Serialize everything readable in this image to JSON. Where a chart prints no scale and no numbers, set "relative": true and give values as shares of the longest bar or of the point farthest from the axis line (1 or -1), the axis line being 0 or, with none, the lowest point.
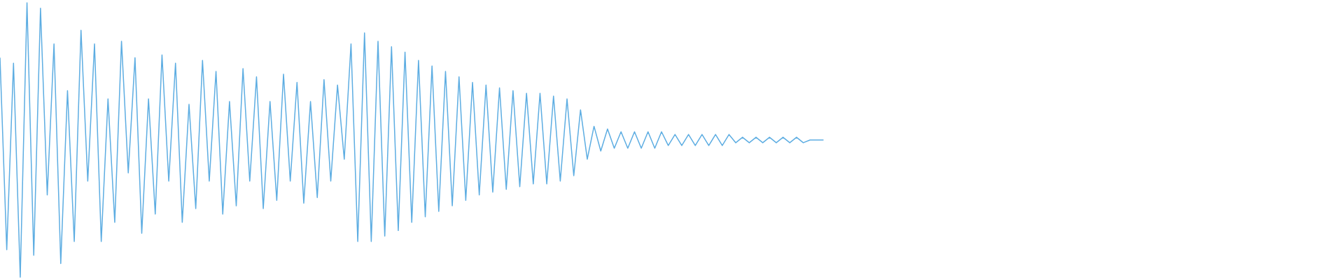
{
  "chart_data": {
    "type": "line",
    "relative": true,
    "categories": [
      null,
      null,
      null,
      null,
      null,
      null,
      null,
      null,
      null,
      null,
      null,
      null,
      null,
      null,
      null,
      null,
      null,
      null,
      null,
      null,
      null,
      null,
      null,
      null,
      null,
      null,
      null,
      null,
      null,
      null,
      null,
      null,
      null,
      null,
      null,
      null,
      null,
      null,
      null,
      null,
      null,
      null,
      null,
      null,
      null,
      null,
      null,
      null,
      null,
      null,
      null,
      null,
      null,
      null,
      null,
      null,
      null,
      null,
      null,
      null,
      null,
      null,
      null,
      null,
      null,
      null,
      null,
      null,
      null,
      null,
      null,
      null,
      null,
      null,
      null,
      null,
      null,
      null,
      null,
      null,
      null,
      null,
      null,
      null,
      null,
      null,
      null,
      null,
      null,
      null,
      null,
      null,
      null,
      null,
      null,
      null,
      null,
      null,
      null,
      null,
      null,
      null,
      null,
      null,
      null,
      null,
      null,
      null,
      null,
      null,
      null,
      null,
      null,
      null,
      null,
      null,
      null,
      null,
      null,
      null,
      null,
      null,
      null,
      null,
      null,
      null,
      null,
      null,
      null,
      null,
      null,
      null,
      null,
      null,
      null,
      null,
      null,
      null,
      null,
      null,
      null,
      null,
      null,
      null,
      null,
      null,
      null,
      null,
      null,
      null,
      null,
      null,
      null,
      null,
      null,
      null,
      null,
      null,
      null,
      null,
      null,
      null,
      null,
      null,
      null,
      null,
      null,
      null,
      null,
      null,
      null,
      null,
      null,
      null,
      null,
      null,
      null,
      null,
      null,
      null,
      null,
      null,
      null,
      null,
      null,
      null,
      null,
      null,
      null,
      null,
      null,
      null,
      null,
      null,
      null,
      null,
      null,
      null,
      null,
      null
    ],
    "series": [
      {
        "color": "#5dade2",
        "values": [
          0.8,
          0.1,
          0.78,
          0,
          1,
          0.08,
          0.98,
          0.3,
          0.85,
          0.05,
          0.68,
          0.13,
          0.9,
          0.35,
          0.85,
          0.13,
          0.65,
          0.2,
          0.86,
          0.38,
          0.8,
          0.16,
          0.65,
          0.23,
          0.81,
          0.35,
          0.78,
          0.2,
          0.63,
          0.25,
          0.79,
          0.35,
          0.75,
          0.23,
          0.64,
          0.26,
          0.76,
          0.35,
          0.73,
          0.25,
          0.64,
          0.28,
          0.74,
          0.35,
          0.71,
          0.27,
          0.64,
          0.29,
          0.72,
          0.35,
          0.7,
          0.43,
          0.85,
          0.13,
          0.89,
          0.13,
          0.86,
          0.15,
          0.84,
          0.17,
          0.82,
          0.2,
          0.79,
          0.22,
          0.77,
          0.24,
          0.75,
          0.26,
          0.73,
          0.28,
          0.71,
          0.3,
          0.7,
          0.31,
          0.69,
          0.32,
          0.68,
          0.33,
          0.67,
          0.34,
          0.67,
          0.34,
          0.66,
          0.35,
          0.65,
          0.37,
          0.61,
          0.43,
          0.55,
          0.46,
          0.54,
          0.47,
          0.53,
          0.47,
          0.53,
          0.47,
          0.53,
          0.47,
          0.53,
          0.48,
          0.52,
          0.48,
          0.52,
          0.48,
          0.52,
          0.48,
          0.52,
          0.48,
          0.52,
          0.49,
          0.51,
          0.49,
          0.51,
          0.49,
          0.51,
          0.49,
          0.51,
          0.49,
          0.51,
          0.49,
          0.5,
          0.5,
          0.5,
          null,
          null,
          null,
          null,
          null,
          null,
          null,
          null,
          null,
          null,
          null,
          null,
          null,
          null,
          null,
          null,
          null,
          null,
          null,
          null,
          null,
          null,
          null,
          null,
          null,
          null,
          null,
          null,
          null,
          null,
          null,
          null,
          null,
          null,
          null,
          null,
          null,
          null,
          null,
          null,
          null,
          null,
          null,
          null,
          null,
          null,
          null,
          null,
          null,
          null,
          null,
          null,
          null,
          null,
          null,
          null,
          null,
          null,
          null,
          null,
          null,
          null,
          null,
          null,
          null,
          null,
          null,
          null,
          null,
          null,
          null,
          null,
          null,
          null,
          null,
          null,
          null
        ]
      }
    ]
  }
}
